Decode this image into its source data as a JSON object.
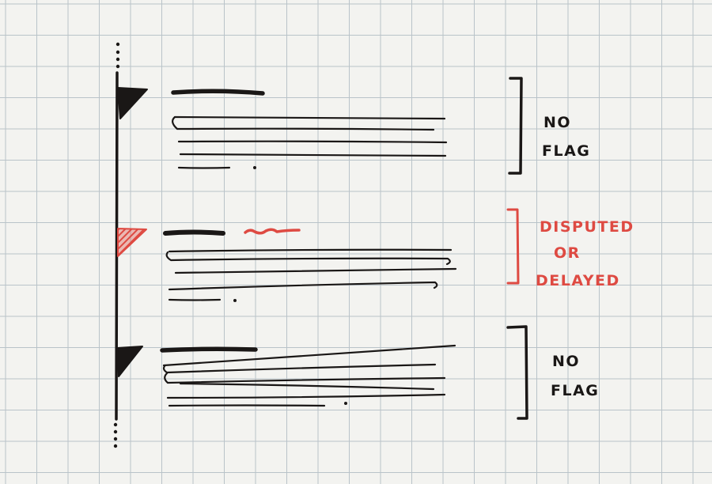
{
  "colors": {
    "paper": "#f3f3f0",
    "grid": "#b9c3c9",
    "ink": "#1a1716",
    "red": "#de4a42"
  },
  "annotations": [
    {
      "lines": [
        "NO",
        "FLAG"
      ],
      "color": "ink"
    },
    {
      "lines": [
        "DISPUTED",
        "OR",
        "DELAYED"
      ],
      "color": "red"
    },
    {
      "lines": [
        "NO",
        "FLAG"
      ],
      "color": "ink"
    }
  ],
  "entries": [
    {
      "flag": "black-flag",
      "flagged": false,
      "status": "no-flag"
    },
    {
      "flag": "red-hatched-flag",
      "flagged": true,
      "status": "disputed-or-delayed"
    },
    {
      "flag": "black-flag",
      "flagged": false,
      "status": "no-flag"
    }
  ]
}
